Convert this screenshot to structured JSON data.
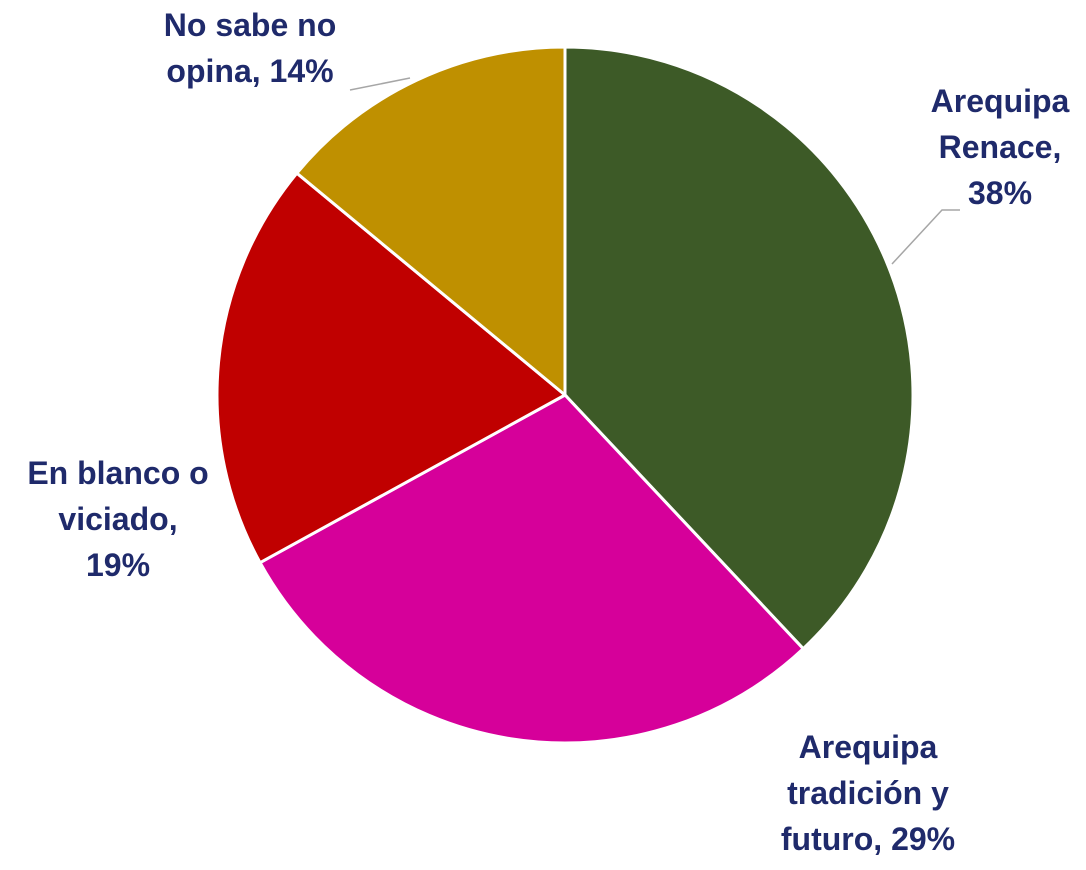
{
  "chart_data": {
    "type": "pie",
    "title": "",
    "label_color": "#1f2a6b",
    "slices": [
      {
        "label_lines": [
          "Arequipa",
          "Renace,",
          "38%"
        ],
        "name": "Arequipa Renace",
        "value": 38,
        "color": "#3d5a27"
      },
      {
        "label_lines": [
          "Arequipa",
          "tradición y",
          "futuro, 29%"
        ],
        "name": "Arequipa tradición y futuro",
        "value": 29,
        "color": "#d6009a"
      },
      {
        "label_lines": [
          "En blanco o",
          "viciado,",
          "19%"
        ],
        "name": "En blanco o viciado",
        "value": 19,
        "color": "#c00000"
      },
      {
        "label_lines": [
          "No sabe no",
          "opina, 14%"
        ],
        "name": "No sabe no opina",
        "value": 14,
        "color": "#bf9000"
      }
    ]
  }
}
